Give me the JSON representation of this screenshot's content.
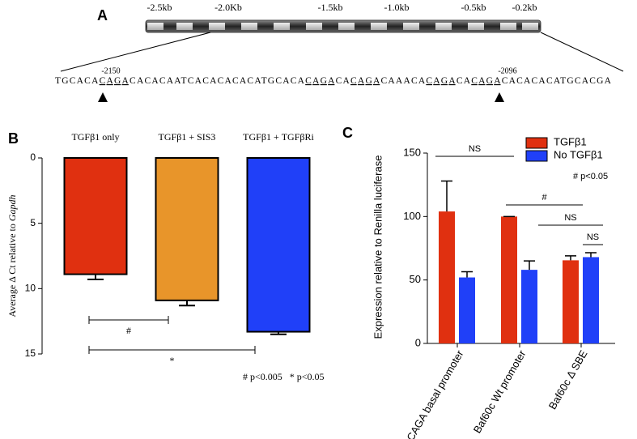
{
  "panel_a": {
    "label": "A",
    "scale_labels": [
      "-2.5kb",
      "-2.0Kb",
      "-1.5kb",
      "-1.0kb",
      "-0.5kb",
      "-0.2kb"
    ],
    "sequence": [
      {
        "text": "TGCACA",
        "underlined": false
      },
      {
        "text": "CAGA",
        "underlined": true
      },
      {
        "text": "CACACAATCACACACACATGCACA",
        "underlined": false
      },
      {
        "text": "CAGA",
        "underlined": true
      },
      {
        "text": "CA",
        "underlined": false
      },
      {
        "text": "CAGA",
        "underlined": true
      },
      {
        "text": "CAAACA",
        "underlined": false
      },
      {
        "text": "CAGA",
        "underlined": true
      },
      {
        "text": "CA",
        "underlined": false
      },
      {
        "text": "CAGA",
        "underlined": true
      },
      {
        "text": "CACACACATGCACGA",
        "underlined": false
      }
    ],
    "site_labels": [
      "-2150",
      "-2096"
    ]
  },
  "chart_data": [
    {
      "type": "bar",
      "label": "B",
      "categories": [
        "TGFβ1 only",
        "TGFβ1 + SIS3",
        "TGFβ1 + TGFβRi"
      ],
      "values": [
        8.9,
        10.9,
        13.3
      ],
      "errors": [
        0.4,
        0.4,
        0.2
      ],
      "colors": [
        "#e03010",
        "#e8952a",
        "#2040f8"
      ],
      "ylabel": [
        "Average Δ Ct relative to ",
        "Gapdh"
      ],
      "ylim": [
        0,
        15
      ],
      "yticks": [
        0,
        5,
        10,
        15
      ],
      "y_inverted": true,
      "annotations": [
        "#",
        "*"
      ],
      "footnote": "# p<0.005   * p<0.05"
    },
    {
      "type": "grouped_bar",
      "label": "C",
      "categories": [
        "CAGA basal promoter",
        "Baf60c Wt promoter",
        "Baf60c Δ SBE"
      ],
      "series": [
        {
          "name": "TGFβ1",
          "color": "#e03010",
          "values": [
            104,
            100,
            65.5
          ],
          "errors": [
            24,
            0,
            3.5
          ]
        },
        {
          "name": "No TGFβ1",
          "color": "#2040f8",
          "values": [
            52,
            58,
            68
          ],
          "errors": [
            4.5,
            7,
            3.5
          ]
        }
      ],
      "ylabel": "Expression relative to Renilla luciferase",
      "ylim": [
        0,
        150
      ],
      "yticks": [
        0,
        50,
        100,
        150
      ],
      "annotations": [
        "NS",
        "#",
        "NS",
        "NS"
      ],
      "footnote": "# p<0.05"
    }
  ]
}
